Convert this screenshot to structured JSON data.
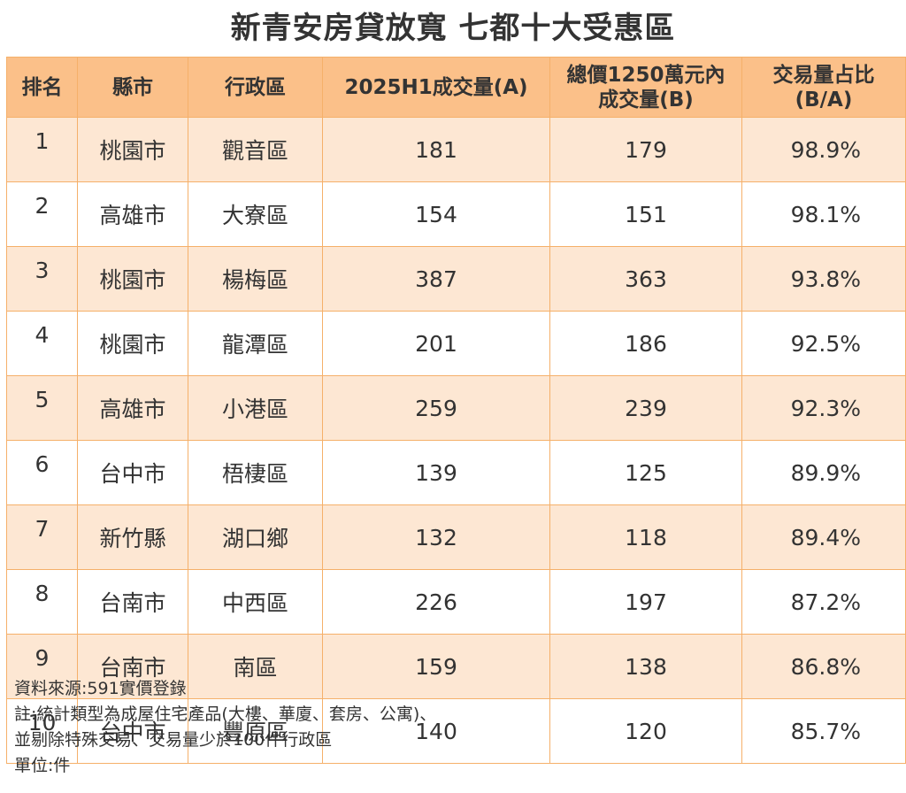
{
  "title": "新青安房貸放寬 七都十大受惠區",
  "headers": {
    "rank": "排名",
    "city": "縣市",
    "district": "行政區",
    "volume_a": "2025H1成交量(A)",
    "volume_b_line1": "總價1250萬元內",
    "volume_b_line2": "成交量(B)",
    "share_line1": "交易量占比",
    "share_line2": "(B/A)"
  },
  "rows": [
    {
      "rank": "1",
      "city": "桃園市",
      "district": "觀音區",
      "a": "181",
      "b": "179",
      "pct": "98.9%"
    },
    {
      "rank": "2",
      "city": "高雄市",
      "district": "大寮區",
      "a": "154",
      "b": "151",
      "pct": "98.1%"
    },
    {
      "rank": "3",
      "city": "桃園市",
      "district": "楊梅區",
      "a": "387",
      "b": "363",
      "pct": "93.8%"
    },
    {
      "rank": "4",
      "city": "桃園市",
      "district": "龍潭區",
      "a": "201",
      "b": "186",
      "pct": "92.5%"
    },
    {
      "rank": "5",
      "city": "高雄市",
      "district": "小港區",
      "a": "259",
      "b": "239",
      "pct": "92.3%"
    },
    {
      "rank": "6",
      "city": "台中市",
      "district": "梧棲區",
      "a": "139",
      "b": "125",
      "pct": "89.9%"
    },
    {
      "rank": "7",
      "city": "新竹縣",
      "district": "湖口鄉",
      "a": "132",
      "b": "118",
      "pct": "89.4%"
    },
    {
      "rank": "8",
      "city": "台南市",
      "district": "中西區",
      "a": "226",
      "b": "197",
      "pct": "87.2%"
    },
    {
      "rank": "9",
      "city": "台南市",
      "district": "南區",
      "a": "159",
      "b": "138",
      "pct": "86.8%"
    },
    {
      "rank": "10",
      "city": "台中市",
      "district": "豐原區",
      "a": "140",
      "b": "120",
      "pct": "85.7%"
    }
  ],
  "notes": {
    "source": "資料來源:591實價登錄",
    "note_line1": "註:統計類型為成屋住宅產品(大樓、華廈、套房、公寓)、",
    "note_line2": "並剔除特殊交易、交易量少於100件行政區",
    "unit": "單位:件"
  },
  "colors": {
    "header_bg": "#fbc089",
    "stripe_bg": "#fde7d3",
    "border": "#f5b06a"
  }
}
